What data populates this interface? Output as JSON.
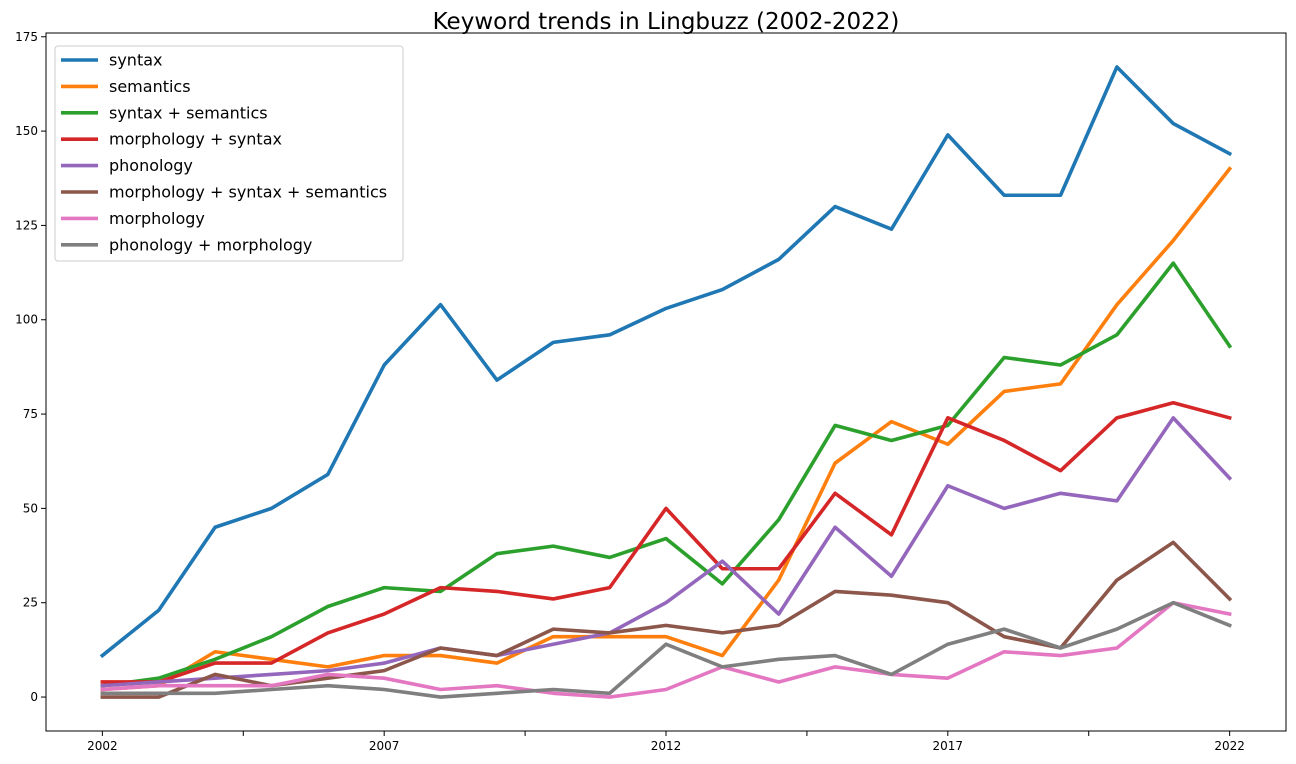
{
  "chart_data": {
    "type": "line",
    "title": "Keyword trends in Lingbuzz (2002-2022)",
    "xlabel": "",
    "ylabel": "",
    "x": [
      2002,
      2003,
      2004,
      2005,
      2006,
      2007,
      2008,
      2009,
      2010,
      2011,
      2012,
      2013,
      2014,
      2015,
      2016,
      2017,
      2018,
      2019,
      2020,
      2021,
      2022
    ],
    "xlim": [
      2001.0,
      2023.0
    ],
    "ylim": [
      -9,
      176
    ],
    "x_ticks": [
      2002,
      2004.5,
      2007,
      2009.5,
      2012,
      2014.5,
      2017,
      2019.5,
      2022
    ],
    "x_tick_labels": [
      "2002",
      "",
      "2007",
      "",
      "2012",
      "",
      "2017",
      "",
      "2022"
    ],
    "y_ticks": [
      0,
      25,
      50,
      75,
      100,
      125,
      150,
      175
    ],
    "y_tick_labels": [
      "0",
      "25",
      "50",
      "75",
      "100",
      "125",
      "150",
      "175"
    ],
    "grid": false,
    "legend_position": "top-left",
    "series": [
      {
        "name": "syntax",
        "color": "#1f77b4",
        "values": [
          11,
          23,
          45,
          50,
          59,
          88,
          104,
          84,
          94,
          96,
          103,
          108,
          116,
          130,
          124,
          149,
          133,
          133,
          167,
          152,
          144
        ]
      },
      {
        "name": "semantics",
        "color": "#ff7f0e",
        "values": [
          2,
          3,
          12,
          10,
          8,
          11,
          11,
          9,
          16,
          16,
          16,
          11,
          31,
          62,
          73,
          67,
          81,
          83,
          104,
          121,
          140
        ]
      },
      {
        "name": "syntax + semantics",
        "color": "#2ca02c",
        "values": [
          3,
          5,
          10,
          16,
          24,
          29,
          28,
          38,
          40,
          37,
          42,
          30,
          47,
          72,
          68,
          72,
          90,
          88,
          96,
          115,
          93
        ]
      },
      {
        "name": "morphology + syntax",
        "color": "#d62728",
        "values": [
          4,
          4,
          9,
          9,
          17,
          22,
          29,
          28,
          26,
          29,
          50,
          34,
          34,
          54,
          43,
          74,
          68,
          60,
          74,
          78,
          74
        ]
      },
      {
        "name": "phonology",
        "color": "#9467bd",
        "values": [
          3,
          4,
          5,
          6,
          7,
          9,
          13,
          11,
          14,
          17,
          25,
          36,
          22,
          45,
          32,
          56,
          50,
          54,
          52,
          74,
          58
        ]
      },
      {
        "name": "morphology + syntax + semantics",
        "color": "#8c564b",
        "values": [
          0,
          0,
          6,
          3,
          5,
          7,
          13,
          11,
          18,
          17,
          19,
          17,
          19,
          28,
          27,
          25,
          16,
          13,
          31,
          41,
          26
        ]
      },
      {
        "name": "morphology",
        "color": "#e377c2",
        "values": [
          2,
          3,
          3,
          3,
          6,
          5,
          2,
          3,
          1,
          0,
          2,
          8,
          4,
          8,
          6,
          5,
          12,
          11,
          13,
          25,
          22
        ]
      },
      {
        "name": "phonology + morphology",
        "color": "#7f7f7f",
        "values": [
          1,
          1,
          1,
          2,
          3,
          2,
          0,
          1,
          2,
          1,
          14,
          8,
          10,
          11,
          6,
          14,
          18,
          13,
          18,
          25,
          19
        ]
      }
    ]
  }
}
